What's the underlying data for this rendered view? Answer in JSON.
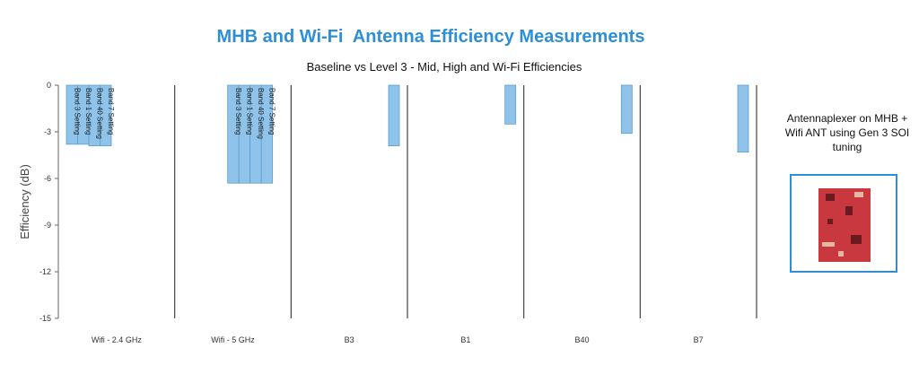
{
  "title": "MHB and Wi-Fi  Antenna Efficiency Measurements",
  "subtitle": "Baseline vs Level 3 - Mid, High and Wi-Fi Efficiencies",
  "inset": {
    "caption": "Antennaplexer on MHB + Wifi ANT using Gen 3 SOI tuning",
    "image_description": "red circuit board photo"
  },
  "colors": {
    "title": "#2e8fd6",
    "bar_fill": "#8fc3ea",
    "bar_stroke": "#5a9fd0",
    "divider": "#444444",
    "inset_border": "#2e8fd6"
  },
  "chart_data": {
    "type": "bar",
    "title": "MHB and Wi-Fi  Antenna Efficiency Measurements",
    "subtitle": "Baseline vs Level 3 - Mid, High and Wi-Fi Efficiencies",
    "ylabel": "Efficiency (dB)",
    "xlabel": "",
    "ylim": [
      -15,
      0
    ],
    "yticks": [
      "0",
      "-3",
      "-6",
      "-9",
      "-12",
      "-15"
    ],
    "ytick_values": [
      0,
      -3,
      -6,
      -9,
      -12,
      -15
    ],
    "grid": false,
    "categories": [
      "Wifi - 2.4 GHz",
      "Wifi - 5 GHz",
      "B3",
      "B1",
      "B40",
      "B7"
    ],
    "groups": [
      {
        "category": "Wifi - 2.4 GHz",
        "bars": [
          {
            "label": "Band 3 Setting",
            "value": -3.8
          },
          {
            "label": "Band 1 Setting",
            "value": -3.8
          },
          {
            "label": "Band 40 Setting",
            "value": -3.9
          },
          {
            "label": "Band 7 Setting",
            "value": -3.9
          }
        ]
      },
      {
        "category": "Wifi - 5 GHz",
        "bars": [
          {
            "label": "Band 3 Setting",
            "value": -6.3
          },
          {
            "label": "Band 1 Setting",
            "value": -6.3
          },
          {
            "label": "Band 40 Setting",
            "value": -6.3
          },
          {
            "label": "Band 7 Setting",
            "value": -6.3
          }
        ]
      },
      {
        "category": "B3",
        "bars": [
          {
            "label": "",
            "value": -3.9
          }
        ]
      },
      {
        "category": "B1",
        "bars": [
          {
            "label": "",
            "value": -2.5
          }
        ]
      },
      {
        "category": "B40",
        "bars": [
          {
            "label": "",
            "value": -3.1
          }
        ]
      },
      {
        "category": "B7",
        "bars": [
          {
            "label": "",
            "value": -4.3
          }
        ]
      }
    ]
  }
}
